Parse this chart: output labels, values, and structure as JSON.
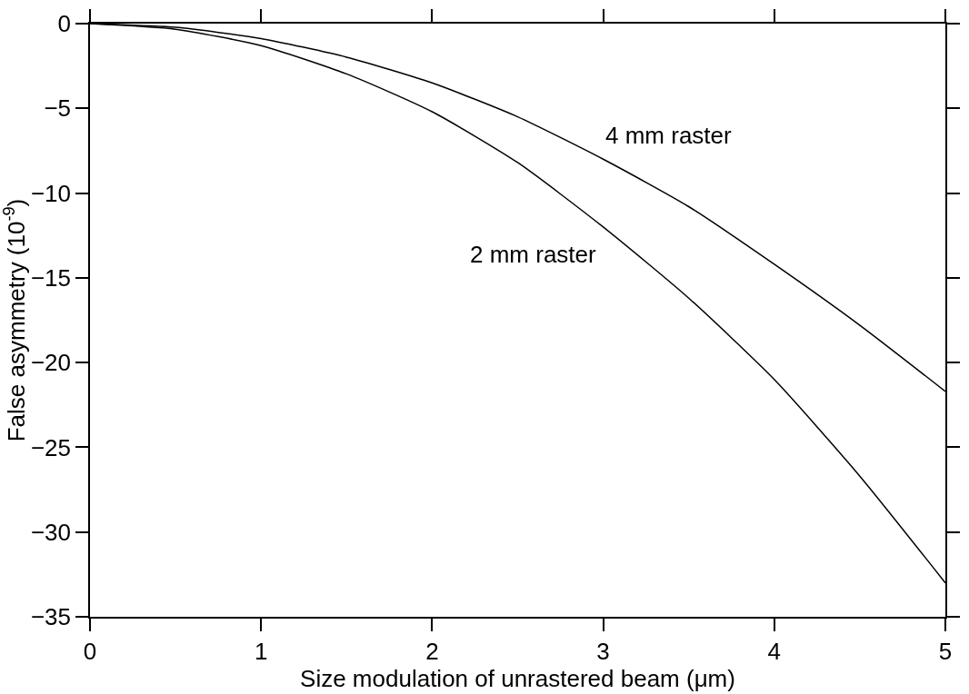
{
  "chart_data": {
    "type": "line",
    "xlabel": "Size modulation of unrastered beam (μm)",
    "ylabel": "False asymmetry (10$^{-9}$)",
    "xlim": [
      0,
      5
    ],
    "ylim": [
      -35,
      0
    ],
    "xticks": [
      0,
      1,
      2,
      3,
      4,
      5
    ],
    "yticks": [
      {
        "value": -35,
        "label": "−35"
      },
      {
        "value": -30,
        "label": "−30"
      },
      {
        "value": -25,
        "label": "−25"
      },
      {
        "value": -20,
        "label": "−20"
      },
      {
        "value": -15,
        "label": "−15"
      },
      {
        "value": -10,
        "label": "−10"
      },
      {
        "value": -5,
        "label": "−5"
      },
      0
    ],
    "x": [
      0,
      0.5,
      1,
      1.5,
      2,
      2.5,
      3,
      3.5,
      4,
      4.5,
      5
    ],
    "series": [
      {
        "name": "4 mm raster",
        "color": "#000000",
        "values": [
          0,
          -0.22,
          -0.88,
          -1.98,
          -3.5,
          -5.5,
          -8.0,
          -10.8,
          -14.2,
          -17.8,
          -21.7
        ]
      },
      {
        "name": "2 mm raster",
        "color": "#000000",
        "values": [
          0,
          -0.33,
          -1.3,
          -2.97,
          -5.2,
          -8.2,
          -12.0,
          -16.2,
          -21.0,
          -26.7,
          -33.0
        ]
      }
    ],
    "legend": false,
    "marker": "none",
    "line_style": "solid"
  }
}
